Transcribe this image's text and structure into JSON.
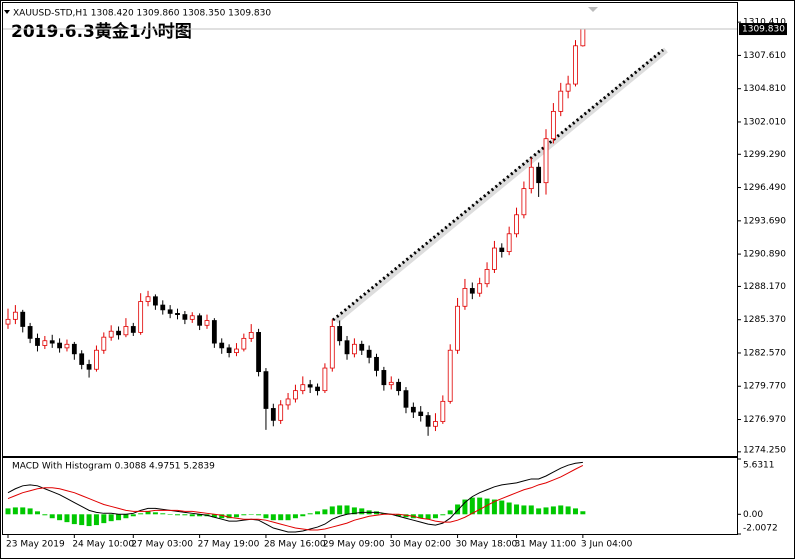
{
  "chart_data": [
    {
      "type": "candlestick",
      "title": "2019.6.3黄金1小时图",
      "header": "XAUUSD-STD,H1  1308.420 1309.860 1308.350 1309.830",
      "categories": [
        "23 May 2019",
        null,
        null,
        null,
        null,
        null,
        null,
        null,
        null,
        "24 May 10:00",
        null,
        null,
        null,
        null,
        null,
        null,
        null,
        "27 May 03:00",
        null,
        null,
        null,
        null,
        null,
        null,
        null,
        null,
        "27 May 19:00",
        null,
        null,
        null,
        null,
        null,
        null,
        null,
        null,
        "28 May 16:00",
        null,
        null,
        null,
        null,
        null,
        null,
        null,
        "29 May 09:00",
        null,
        null,
        null,
        null,
        null,
        null,
        null,
        null,
        "30 May 02:00",
        null,
        null,
        null,
        null,
        null,
        null,
        null,
        null,
        "30 May 18:00",
        null,
        null,
        null,
        null,
        null,
        null,
        null,
        "31 May 11:00",
        null,
        null,
        null,
        null,
        null,
        null,
        null,
        null,
        "3 Jun 04:00"
      ],
      "open": [
        1285.0,
        1285.4,
        1286.0,
        1284.8,
        1283.8,
        1283.2,
        1283.6,
        1283.4,
        1283.0,
        1283.3,
        1282.5,
        1281.6,
        1281.2,
        1282.8,
        1283.9,
        1284.4,
        1284.1,
        1284.8,
        1284.3,
        1286.9,
        1287.3,
        1286.6,
        1286.2,
        1285.9,
        1285.8,
        1285.4,
        1285.7,
        1284.9,
        1285.3,
        1283.4,
        1283.0,
        1282.6,
        1282.9,
        1283.8,
        1284.3,
        1281.0,
        1277.9,
        1276.9,
        1278.2,
        1278.7,
        1279.4,
        1279.9,
        1279.7,
        1279.4,
        1281.3,
        1284.8,
        1283.6,
        1282.5,
        1283.3,
        1282.8,
        1282.2,
        1281.1,
        1279.9,
        1280.1,
        1279.4,
        1278.0,
        1277.6,
        1277.3,
        1276.4,
        1276.8,
        1278.5,
        1282.8,
        1286.5,
        1288.0,
        1287.6,
        1288.4,
        1289.6,
        1291.4,
        1291.1,
        1292.6,
        1294.2,
        1296.4,
        1298.2,
        1296.9,
        1300.6,
        1302.9,
        1304.6,
        1305.2,
        1308.42
      ],
      "high": [
        1286.3,
        1286.6,
        1286.2,
        1285.1,
        1284.2,
        1284.0,
        1284.1,
        1283.8,
        1283.7,
        1283.5,
        1282.8,
        1282.0,
        1283.2,
        1284.3,
        1284.9,
        1284.8,
        1285.5,
        1285.1,
        1287.6,
        1287.8,
        1287.5,
        1287.0,
        1286.6,
        1286.3,
        1286.1,
        1286.0,
        1285.9,
        1285.8,
        1285.5,
        1283.8,
        1283.3,
        1283.4,
        1284.2,
        1285.0,
        1284.6,
        1281.3,
        1278.3,
        1278.6,
        1279.2,
        1279.9,
        1280.6,
        1280.3,
        1280.0,
        1281.7,
        1285.4,
        1285.3,
        1284.0,
        1283.8,
        1283.6,
        1283.2,
        1282.5,
        1281.4,
        1280.6,
        1280.4,
        1279.7,
        1278.4,
        1278.1,
        1277.6,
        1277.5,
        1279.0,
        1283.3,
        1287.2,
        1288.8,
        1288.5,
        1288.9,
        1290.2,
        1292.0,
        1291.8,
        1293.2,
        1294.8,
        1297.0,
        1299.0,
        1298.6,
        1301.4,
        1303.6,
        1305.3,
        1305.9,
        1308.9,
        1309.86
      ],
      "low": [
        1284.6,
        1285.0,
        1284.3,
        1283.4,
        1282.7,
        1282.9,
        1283.0,
        1282.6,
        1282.7,
        1282.0,
        1281.2,
        1280.5,
        1281.0,
        1282.5,
        1283.6,
        1283.7,
        1283.9,
        1284.0,
        1284.1,
        1286.5,
        1286.2,
        1285.8,
        1285.5,
        1285.4,
        1285.0,
        1285.1,
        1284.5,
        1284.6,
        1283.0,
        1282.5,
        1282.2,
        1282.3,
        1282.7,
        1283.5,
        1280.6,
        1276.1,
        1276.4,
        1276.6,
        1277.8,
        1278.4,
        1279.1,
        1279.2,
        1279.0,
        1279.2,
        1281.0,
        1283.2,
        1282.0,
        1282.2,
        1282.4,
        1281.7,
        1280.6,
        1279.4,
        1279.5,
        1279.0,
        1277.5,
        1277.1,
        1276.8,
        1275.6,
        1276.0,
        1276.6,
        1278.3,
        1282.5,
        1286.2,
        1287.1,
        1287.3,
        1288.1,
        1289.3,
        1290.6,
        1290.8,
        1292.3,
        1293.9,
        1296.0,
        1295.7,
        1295.9,
        1300.2,
        1302.5,
        1304.0,
        1305.0,
        1308.35
      ],
      "close": [
        1285.4,
        1286.0,
        1284.8,
        1283.8,
        1283.2,
        1283.6,
        1283.4,
        1283.0,
        1283.3,
        1282.5,
        1281.6,
        1281.2,
        1282.8,
        1283.9,
        1284.4,
        1284.1,
        1284.8,
        1284.3,
        1286.9,
        1287.3,
        1286.6,
        1286.2,
        1285.9,
        1285.8,
        1285.4,
        1285.7,
        1284.9,
        1285.3,
        1283.4,
        1283.0,
        1282.6,
        1282.9,
        1283.8,
        1284.3,
        1281.0,
        1277.9,
        1276.9,
        1278.2,
        1278.7,
        1279.4,
        1279.9,
        1279.7,
        1279.4,
        1281.3,
        1284.8,
        1283.6,
        1282.5,
        1283.3,
        1282.8,
        1282.2,
        1281.1,
        1279.9,
        1280.1,
        1279.4,
        1278.0,
        1277.6,
        1277.3,
        1276.4,
        1276.8,
        1278.5,
        1282.8,
        1286.5,
        1288.0,
        1287.6,
        1288.4,
        1289.6,
        1291.4,
        1291.1,
        1292.6,
        1294.2,
        1296.4,
        1298.2,
        1296.9,
        1300.6,
        1302.9,
        1304.6,
        1305.2,
        1308.42,
        1309.83
      ],
      "up_color": "#e00000",
      "down_color": "#000000",
      "ylim": [
        1273.9,
        1311.6
      ],
      "yticks": [
        {
          "value": 1310.41,
          "label": "1310.410"
        },
        {
          "value": 1307.61,
          "label": "1307.610"
        },
        {
          "value": 1304.81,
          "label": "1304.810"
        },
        {
          "value": 1302.01,
          "label": "1302.010"
        },
        {
          "value": 1299.29,
          "label": "1299.290"
        },
        {
          "value": 1296.49,
          "label": "1296.490"
        },
        {
          "value": 1293.69,
          "label": "1293.690"
        },
        {
          "value": 1290.89,
          "label": "1290.890"
        },
        {
          "value": 1288.17,
          "label": "1288.170"
        },
        {
          "value": 1285.37,
          "label": "1285.370"
        },
        {
          "value": 1282.57,
          "label": "1282.570"
        },
        {
          "value": 1279.77,
          "label": "1279.770"
        },
        {
          "value": 1276.97,
          "label": "1276.970"
        },
        {
          "value": 1274.25,
          "label": "1274.250"
        }
      ],
      "last_price": {
        "value": 1309.83,
        "label": "1309.830"
      }
    },
    {
      "type": "macd",
      "title": "MACD With Histogram 0.3088 4.9751 5.2839",
      "series": [
        {
          "type": "bar",
          "color": "#00c800",
          "values": [
            0.6,
            0.7,
            0.7,
            0.6,
            0.3,
            -0.1,
            -0.4,
            -0.6,
            -0.8,
            -1.0,
            -1.1,
            -1.2,
            -1.1,
            -0.9,
            -0.7,
            -0.6,
            -0.4,
            -0.2,
            0.1,
            0.3,
            0.2,
            0.1,
            0.0,
            -0.1,
            -0.1,
            -0.2,
            -0.2,
            -0.2,
            -0.3,
            -0.4,
            -0.4,
            -0.3,
            -0.1,
            0.0,
            -0.1,
            -0.4,
            -0.6,
            -0.6,
            -0.6,
            -0.4,
            -0.2,
            0.1,
            0.3,
            0.5,
            0.8,
            0.9,
            0.9,
            0.7,
            0.6,
            0.4,
            0.3,
            0.1,
            0.0,
            -0.2,
            -0.3,
            -0.4,
            -0.4,
            -0.5,
            -0.4,
            -0.1,
            0.4,
            1.0,
            1.5,
            1.7,
            1.7,
            1.6,
            1.5,
            1.4,
            1.2,
            1.0,
            0.9,
            0.9,
            0.6,
            0.7,
            0.8,
            0.9,
            0.8,
            0.6,
            0.3088
          ]
        },
        {
          "type": "line",
          "color": "#000000",
          "values": [
            2.2,
            2.6,
            2.9,
            3.0,
            2.9,
            2.6,
            2.3,
            2.0,
            1.6,
            1.2,
            0.8,
            0.4,
            0.2,
            0.1,
            0.1,
            0.0,
            0.0,
            0.1,
            0.4,
            0.6,
            0.6,
            0.5,
            0.4,
            0.3,
            0.2,
            0.1,
            0.0,
            -0.1,
            -0.3,
            -0.5,
            -0.7,
            -0.7,
            -0.6,
            -0.5,
            -0.6,
            -1.0,
            -1.4,
            -1.6,
            -1.8,
            -1.8,
            -1.7,
            -1.5,
            -1.3,
            -1.0,
            -0.5,
            -0.2,
            0.0,
            0.1,
            0.2,
            0.2,
            0.2,
            0.1,
            0.0,
            -0.2,
            -0.4,
            -0.6,
            -0.8,
            -1.0,
            -1.1,
            -0.9,
            -0.4,
            0.4,
            1.2,
            1.8,
            2.2,
            2.5,
            2.8,
            3.0,
            3.1,
            3.2,
            3.4,
            3.6,
            3.6,
            3.9,
            4.3,
            4.7,
            5.0,
            5.2,
            5.2839
          ]
        },
        {
          "type": "line",
          "color": "#e00000",
          "values": [
            1.6,
            1.9,
            2.2,
            2.4,
            2.6,
            2.7,
            2.7,
            2.6,
            2.4,
            2.2,
            1.9,
            1.6,
            1.3,
            1.0,
            0.8,
            0.6,
            0.4,
            0.3,
            0.3,
            0.3,
            0.4,
            0.4,
            0.4,
            0.4,
            0.3,
            0.3,
            0.2,
            0.1,
            0.0,
            -0.1,
            -0.3,
            -0.4,
            -0.5,
            -0.5,
            -0.5,
            -0.6,
            -0.8,
            -1.0,
            -1.2,
            -1.4,
            -1.5,
            -1.6,
            -1.6,
            -1.5,
            -1.3,
            -1.1,
            -0.9,
            -0.6,
            -0.4,
            -0.2,
            -0.1,
            0.0,
            0.0,
            0.0,
            -0.1,
            -0.2,
            -0.4,
            -0.5,
            -0.7,
            -0.8,
            -0.8,
            -0.6,
            -0.3,
            0.1,
            0.5,
            0.9,
            1.3,
            1.6,
            1.9,
            2.2,
            2.5,
            2.7,
            3.0,
            3.2,
            3.5,
            3.8,
            4.2,
            4.6,
            4.9751
          ]
        }
      ],
      "ylim": [
        -2.0072,
        5.6311
      ],
      "yticks": [
        5.6311,
        {
          "value": 0,
          "label": "0.00"
        },
        -2.0072
      ]
    }
  ]
}
